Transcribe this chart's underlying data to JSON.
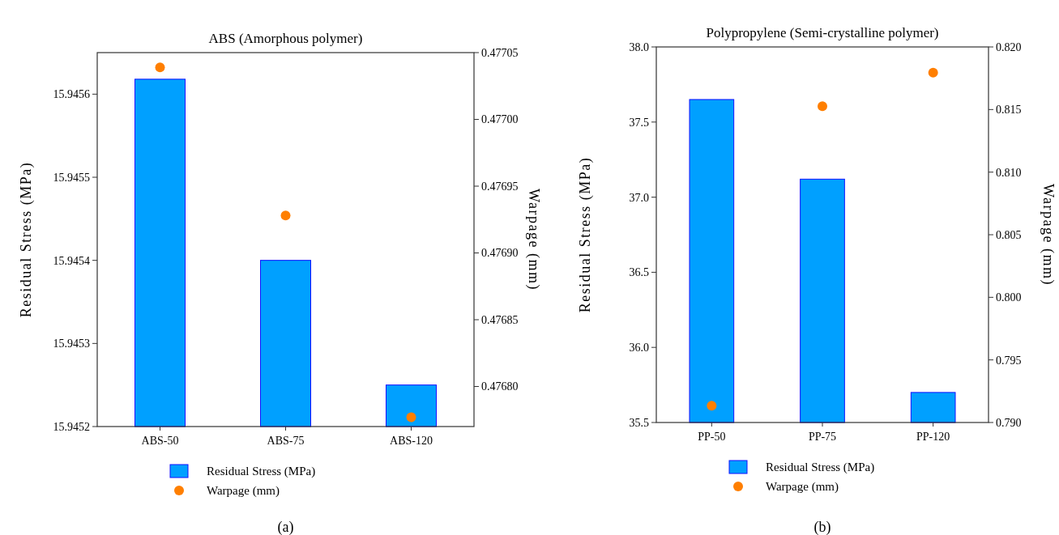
{
  "chart_data": [
    {
      "type": "bar",
      "title": "ABS (Amorphous polymer)",
      "ylabel": "Residual Stress (MPa)",
      "y2label": "Warpage (mm)",
      "categories": [
        "ABS-50",
        "ABS-75",
        "ABS-120"
      ],
      "series": [
        {
          "name": "Residual Stress (MPa)",
          "color": "#00a0ff",
          "values": [
            15.945618,
            15.9454,
            15.94525
          ]
        },
        {
          "name": "Warpage (mm)",
          "type": "scatter",
          "axis": "y2",
          "color": "#ff7f00",
          "values": [
            0.477039,
            0.476928,
            0.476777
          ]
        }
      ],
      "ylim": [
        15.9452,
        15.94565
      ],
      "yticks": [
        15.9452,
        15.9453,
        15.9454,
        15.9455,
        15.9456
      ],
      "y2lim": [
        0.47677,
        0.47705
      ],
      "y2ticks": [
        {
          "value": 0.4768,
          "label": "0.47680"
        },
        0.47685,
        {
          "value": 0.4769,
          "label": "0.47690"
        },
        0.47695,
        {
          "value": 0.477,
          "label": "0.47700"
        },
        0.47705
      ],
      "legend": "bottom",
      "marker": "circle",
      "grid": false,
      "annotations": [
        "(a)"
      ]
    },
    {
      "type": "bar",
      "title": "Polypropylene (Semi-crystalline polymer)",
      "ylabel": "Residual Stress (MPa)",
      "y2label": "Warpage (mm)",
      "categories": [
        "PP-50",
        "PP-75",
        "PP-120"
      ],
      "series": [
        {
          "name": "Residual Stress (MPa)",
          "color": "#00a0ff",
          "values": [
            37.65,
            37.12,
            35.7
          ]
        },
        {
          "name": "Warpage (mm)",
          "type": "scatter",
          "axis": "y2",
          "color": "#ff7f00",
          "values": [
            0.79134,
            0.81526,
            0.81794
          ]
        }
      ],
      "ylim": [
        35.5,
        38.0
      ],
      "yticks": [
        {
          "value": 35.5,
          "label": "35.5"
        },
        {
          "value": 36,
          "label": "36.0"
        },
        {
          "value": 36.5,
          "label": "36.5"
        },
        {
          "value": 37,
          "label": "37.0"
        },
        {
          "value": 37.5,
          "label": "37.5"
        },
        {
          "value": 38,
          "label": "38.0"
        }
      ],
      "y2lim": [
        0.79,
        0.82
      ],
      "y2ticks": [
        {
          "value": 0.79,
          "label": "0.790"
        },
        0.795,
        {
          "value": 0.8,
          "label": "0.800"
        },
        0.805,
        {
          "value": 0.81,
          "label": "0.810"
        },
        0.815,
        {
          "value": 0.82,
          "label": "0.820"
        }
      ],
      "legend": "bottom",
      "marker": "circle",
      "grid": false,
      "annotations": [
        "(b)"
      ]
    }
  ]
}
